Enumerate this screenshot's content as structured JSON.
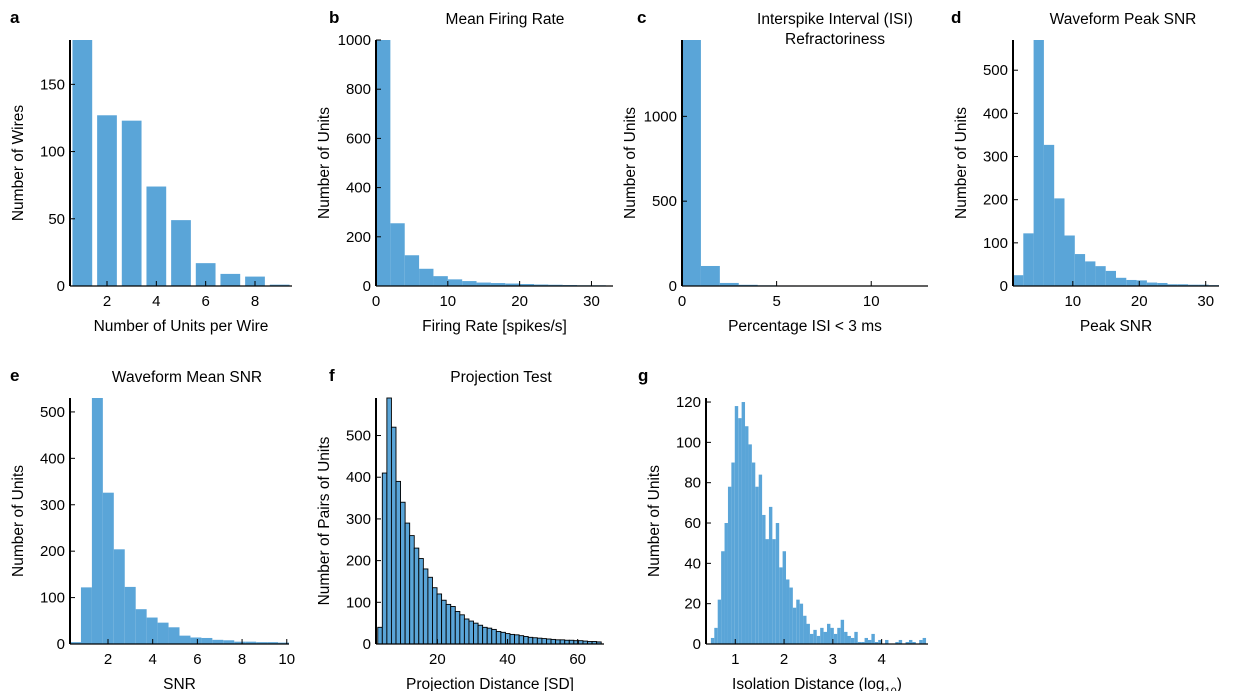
{
  "colors": {
    "bar": "#5aa5d8",
    "bar_edge": "#000000",
    "axis": "#000000",
    "text": "#000000"
  },
  "chart_data": [
    {
      "panel": "a",
      "type": "bar",
      "title": "",
      "xlabel": "Number of Units per Wire",
      "ylabel": "Number of Wires",
      "xlim": [
        0.5,
        9.5
      ],
      "ylim": [
        0,
        183
      ],
      "xticks": [
        2,
        4,
        6,
        8
      ],
      "yticks": [
        0,
        50,
        100,
        150
      ],
      "bar_width": 0.8,
      "x": [
        1,
        2,
        3,
        4,
        5,
        6,
        7,
        8,
        9
      ],
      "values": [
        183,
        127,
        123,
        74,
        49,
        17,
        9,
        7,
        1
      ]
    },
    {
      "panel": "b",
      "type": "histogram",
      "title": "Mean Firing Rate",
      "xlabel": "Firing Rate [spikes/s]",
      "ylabel": "Number of Units",
      "xlim": [
        0,
        33
      ],
      "ylim": [
        0,
        1000
      ],
      "xticks": [
        0,
        10,
        20,
        30
      ],
      "yticks": [
        0,
        200,
        400,
        600,
        800,
        1000
      ],
      "bin_edges": [
        0,
        2,
        4,
        6,
        8,
        10,
        12,
        14,
        16,
        18,
        20,
        22,
        24,
        26,
        28,
        30,
        32,
        33
      ],
      "values": [
        1000,
        255,
        125,
        70,
        40,
        27,
        20,
        14,
        12,
        10,
        8,
        6,
        5,
        4,
        3,
        3,
        2
      ]
    },
    {
      "panel": "c",
      "type": "histogram",
      "title_lines": [
        "Interspike Interval (ISI)",
        "Refractoriness"
      ],
      "xlabel": "Percentage ISI < 3 ms",
      "ylabel": "Number of Units",
      "xlim": [
        0,
        13
      ],
      "ylim": [
        0,
        1450
      ],
      "xticks": [
        0,
        5,
        10
      ],
      "yticks": [
        0,
        500,
        1000
      ],
      "bin_edges": [
        0,
        1,
        2,
        3,
        4,
        5,
        6,
        7,
        8,
        9,
        10,
        11,
        12,
        13
      ],
      "values": [
        1450,
        118,
        18,
        7,
        4,
        3,
        2,
        2,
        1,
        1,
        1,
        1,
        1
      ]
    },
    {
      "panel": "d",
      "type": "histogram",
      "title": "Waveform Peak SNR",
      "xlabel": "Peak SNR",
      "ylabel": "Number of Units",
      "xlim": [
        1,
        32
      ],
      "ylim": [
        0,
        570
      ],
      "xticks": [
        10,
        20,
        30
      ],
      "yticks": [
        0,
        100,
        200,
        300,
        400,
        500
      ],
      "bin_edges": [
        1,
        2.55,
        4.1,
        5.65,
        7.2,
        8.75,
        10.3,
        11.85,
        13.4,
        14.95,
        16.5,
        18.05,
        19.6,
        21.15,
        22.7,
        24.25,
        25.8,
        27.35,
        28.9,
        30.45,
        32
      ],
      "values": [
        25,
        122,
        570,
        327,
        203,
        117,
        74,
        57,
        46,
        35,
        19,
        14,
        13,
        8,
        7,
        4,
        4,
        3,
        3,
        2
      ]
    },
    {
      "panel": "e",
      "type": "histogram",
      "title": "Waveform Mean SNR",
      "xlabel": "SNR",
      "ylabel": "Number of Units",
      "xlim": [
        0.3,
        10.1
      ],
      "ylim": [
        0,
        530
      ],
      "xticks": [
        2,
        4,
        6,
        8,
        10
      ],
      "yticks": [
        0,
        100,
        200,
        300,
        400,
        500
      ],
      "bin_edges": [
        0.3,
        0.79,
        1.28,
        1.77,
        2.26,
        2.75,
        3.24,
        3.73,
        4.22,
        4.71,
        5.2,
        5.69,
        6.18,
        6.67,
        7.16,
        7.65,
        8.14,
        8.63,
        9.12,
        9.61,
        10.1
      ],
      "values": [
        4,
        122,
        530,
        326,
        204,
        123,
        75,
        57,
        46,
        36,
        18,
        14,
        13,
        9,
        8,
        5,
        5,
        4,
        4,
        3
      ]
    },
    {
      "panel": "f",
      "type": "histogram",
      "title": "Projection Test",
      "edged": true,
      "xlabel": "Projection Distance [SD]",
      "ylabel": "Number of Pairs of Units",
      "xlim": [
        2.5,
        67.5
      ],
      "ylim": [
        0,
        590
      ],
      "xticks": [
        20,
        40,
        60
      ],
      "yticks": [
        0,
        100,
        200,
        300,
        400,
        500
      ],
      "bin_edges": [
        3,
        4.3,
        5.6,
        6.9,
        8.2,
        9.5,
        10.8,
        12.1,
        13.4,
        14.7,
        16,
        17.3,
        18.6,
        19.9,
        21.2,
        22.5,
        23.8,
        25.1,
        26.4,
        27.7,
        29,
        30.3,
        31.6,
        32.9,
        34.2,
        35.5,
        36.8,
        38.1,
        39.4,
        40.7,
        42,
        43.3,
        44.6,
        45.9,
        47.2,
        48.5,
        49.8,
        51.1,
        52.4,
        53.7,
        55,
        56.3,
        57.6,
        58.9,
        60.2,
        61.5,
        62.8,
        64.1,
        65.4,
        66.7
      ],
      "values": [
        40,
        410,
        590,
        520,
        390,
        340,
        290,
        260,
        230,
        205,
        180,
        160,
        135,
        120,
        105,
        95,
        90,
        78,
        70,
        60,
        55,
        50,
        45,
        40,
        38,
        35,
        30,
        28,
        25,
        23,
        22,
        20,
        18,
        16,
        15,
        14,
        13,
        12,
        11,
        10,
        10,
        9,
        9,
        8,
        8,
        7,
        6,
        6,
        5
      ]
    },
    {
      "panel": "g",
      "type": "histogram",
      "title": "",
      "xlabel": "Isolation Distance (log10)",
      "ylabel": "Number of Units",
      "xlim": [
        0.4,
        4.95
      ],
      "ylim": [
        0,
        122
      ],
      "xticks": [
        1,
        2,
        3,
        4
      ],
      "yticks": [
        0,
        20,
        40,
        60,
        80,
        100,
        120
      ],
      "bin_edges": [
        0.5,
        0.57,
        0.64,
        0.71,
        0.78,
        0.85,
        0.92,
        0.99,
        1.06,
        1.13,
        1.2,
        1.27,
        1.34,
        1.41,
        1.48,
        1.55,
        1.62,
        1.69,
        1.76,
        1.83,
        1.9,
        1.97,
        2.04,
        2.11,
        2.18,
        2.25,
        2.32,
        2.39,
        2.46,
        2.53,
        2.6,
        2.67,
        2.74,
        2.81,
        2.88,
        2.95,
        3.02,
        3.09,
        3.16,
        3.23,
        3.3,
        3.37,
        3.44,
        3.51,
        3.58,
        3.65,
        3.72,
        3.79,
        3.86,
        3.93,
        4.0,
        4.07,
        4.14,
        4.21,
        4.28,
        4.35,
        4.42,
        4.49,
        4.56,
        4.63,
        4.7,
        4.77,
        4.84,
        4.91
      ],
      "values": [
        3,
        8,
        22,
        46,
        60,
        78,
        90,
        118,
        112,
        120,
        108,
        99,
        90,
        78,
        84,
        64,
        52,
        68,
        52,
        60,
        38,
        46,
        32,
        28,
        18,
        22,
        20,
        14,
        10,
        5,
        7,
        4,
        8,
        6,
        10,
        8,
        5,
        8,
        12,
        6,
        4,
        3,
        6,
        1,
        1,
        3,
        2,
        5,
        1,
        2,
        0,
        2,
        0,
        0,
        1,
        2,
        0,
        1,
        2,
        1,
        0,
        2,
        3
      ]
    }
  ]
}
